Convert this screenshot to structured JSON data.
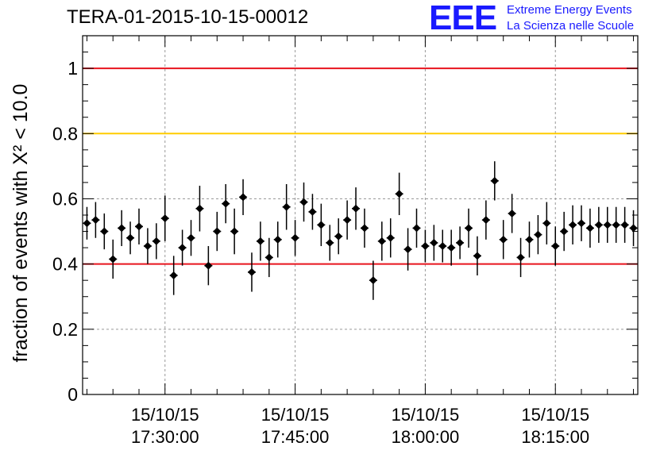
{
  "title": "TERA-01-2015-10-15-00012",
  "logo": {
    "mark": "EEE",
    "line1": "Extreme Energy Events",
    "line2": "La Scienza nelle Scuole"
  },
  "colors": {
    "red_line": "#e8141e",
    "yellow_line": "#ffcc00",
    "marker": "#000000",
    "logo": "#1a1aff"
  },
  "chart_data": {
    "type": "scatter",
    "ylabel": "fraction of events with X² < 10.0",
    "ylim": [
      0,
      1.1
    ],
    "xlim": [
      "17:20:30",
      "18:24:30"
    ],
    "grid": true,
    "yticks": [
      {
        "value": 0,
        "label": "0"
      },
      {
        "value": 0.2,
        "label": "0.2"
      },
      {
        "value": 0.4,
        "label": "0.4"
      },
      {
        "value": 0.6,
        "label": "0.6"
      },
      {
        "value": 0.8,
        "label": "0.8"
      },
      {
        "value": 1,
        "label": "1"
      }
    ],
    "xticks": [
      {
        "value": "17:30:00",
        "date": "15/10/15",
        "time": "17:30:00"
      },
      {
        "value": "17:45:00",
        "date": "15/10/15",
        "time": "17:45:00"
      },
      {
        "value": "18:00:00",
        "date": "15/10/15",
        "time": "18:00:00"
      },
      {
        "value": "18:15:00",
        "date": "15/10/15",
        "time": "18:15:00"
      }
    ],
    "reference_lines": [
      {
        "y": 1.0,
        "color": "red"
      },
      {
        "y": 0.8,
        "color": "yellow"
      },
      {
        "y": 0.4,
        "color": "red"
      }
    ],
    "series": [
      {
        "x": [
          "17:21:00",
          "17:22:00",
          "17:23:00",
          "17:24:00",
          "17:25:00",
          "17:26:00",
          "17:27:00",
          "17:28:00",
          "17:29:00",
          "17:30:00",
          "17:31:00",
          "17:32:00",
          "17:33:00",
          "17:34:00",
          "17:35:00",
          "17:36:00",
          "17:37:00",
          "17:38:00",
          "17:39:00",
          "17:40:00",
          "17:41:00",
          "17:42:00",
          "17:43:00",
          "17:44:00",
          "17:45:00",
          "17:46:00",
          "17:47:00",
          "17:48:00",
          "17:49:00",
          "17:50:00",
          "17:51:00",
          "17:52:00",
          "17:53:00",
          "17:54:00",
          "17:55:00",
          "17:56:00",
          "17:57:00",
          "17:58:00",
          "17:59:00",
          "18:00:00",
          "18:01:00",
          "18:02:00",
          "18:03:00",
          "18:04:00",
          "18:05:00",
          "18:06:00",
          "18:07:00",
          "18:08:00",
          "18:09:00",
          "18:10:00",
          "18:11:00",
          "18:12:00",
          "18:13:00",
          "18:14:00",
          "18:15:00",
          "18:16:00",
          "18:17:00",
          "18:18:00",
          "18:19:00",
          "18:20:00",
          "18:21:00",
          "18:22:00",
          "18:23:00",
          "18:24:00"
        ],
        "y": [
          0.525,
          0.535,
          0.5,
          0.415,
          0.51,
          0.48,
          0.515,
          0.455,
          0.47,
          0.54,
          0.365,
          0.45,
          0.48,
          0.57,
          0.395,
          0.5,
          0.585,
          0.5,
          0.605,
          0.375,
          0.47,
          0.42,
          0.475,
          0.575,
          0.48,
          0.59,
          0.56,
          0.52,
          0.465,
          0.485,
          0.535,
          0.57,
          0.51,
          0.35,
          0.47,
          0.48,
          0.615,
          0.445,
          0.51,
          0.455,
          0.465,
          0.455,
          0.45,
          0.465,
          0.51,
          0.425,
          0.535,
          0.655,
          0.475,
          0.555,
          0.42,
          0.475,
          0.49,
          0.525,
          0.455,
          0.5,
          0.52,
          0.525,
          0.51,
          0.52,
          0.52,
          0.52,
          0.52,
          0.51
        ],
        "yerr": [
          0.05,
          0.055,
          0.055,
          0.06,
          0.055,
          0.05,
          0.055,
          0.055,
          0.055,
          0.07,
          0.06,
          0.055,
          0.055,
          0.07,
          0.06,
          0.06,
          0.06,
          0.07,
          0.055,
          0.06,
          0.06,
          0.06,
          0.055,
          0.07,
          0.055,
          0.06,
          0.055,
          0.065,
          0.055,
          0.055,
          0.06,
          0.065,
          0.06,
          0.06,
          0.06,
          0.06,
          0.065,
          0.065,
          0.06,
          0.05,
          0.055,
          0.05,
          0.055,
          0.05,
          0.06,
          0.06,
          0.06,
          0.06,
          0.06,
          0.06,
          0.06,
          0.055,
          0.06,
          0.065,
          0.06,
          0.06,
          0.06,
          0.055,
          0.06,
          0.055,
          0.055,
          0.055,
          0.055,
          0.055
        ]
      }
    ]
  }
}
